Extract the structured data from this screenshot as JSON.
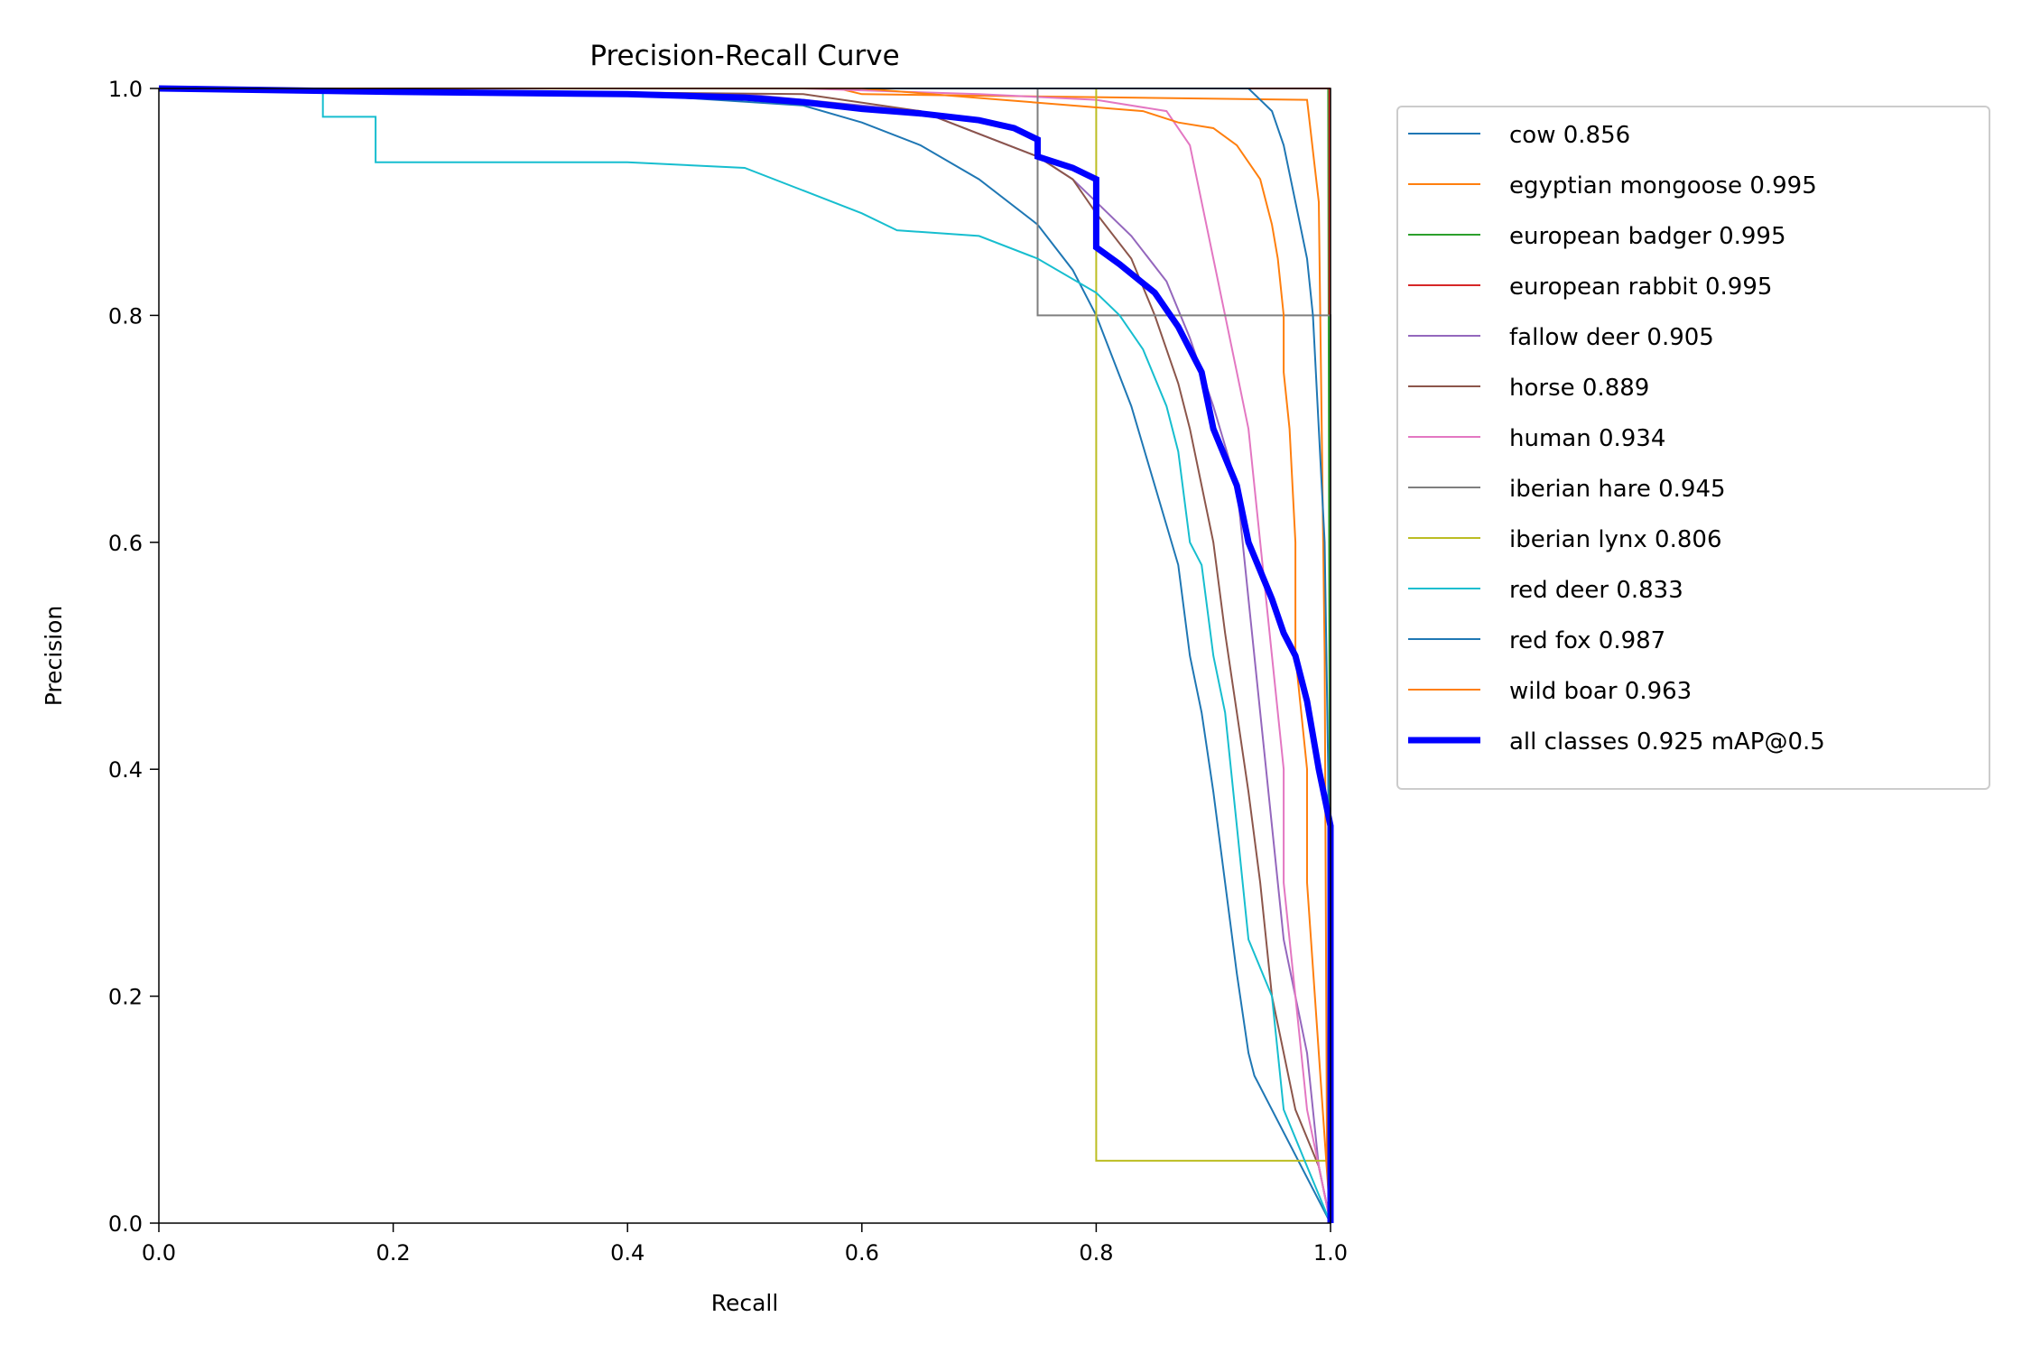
{
  "chart_data": {
    "type": "line",
    "title": "Precision-Recall Curve",
    "xlabel": "Recall",
    "ylabel": "Precision",
    "xlim": [
      0,
      1
    ],
    "ylim": [
      0,
      1
    ],
    "x_ticks": [
      "0.0",
      "0.2",
      "0.4",
      "0.6",
      "0.8",
      "1.0"
    ],
    "y_ticks": [
      "0.0",
      "0.2",
      "0.4",
      "0.6",
      "0.8",
      "1.0"
    ],
    "grid": false,
    "legend_position": "outside-right",
    "series": [
      {
        "name": "cow 0.856",
        "color": "#1f77b4",
        "width": 1,
        "points": [
          [
            0,
            1
          ],
          [
            0.4,
            0.995
          ],
          [
            0.55,
            0.985
          ],
          [
            0.6,
            0.97
          ],
          [
            0.65,
            0.95
          ],
          [
            0.7,
            0.92
          ],
          [
            0.75,
            0.88
          ],
          [
            0.78,
            0.84
          ],
          [
            0.8,
            0.8
          ],
          [
            0.83,
            0.72
          ],
          [
            0.85,
            0.65
          ],
          [
            0.87,
            0.58
          ],
          [
            0.88,
            0.5
          ],
          [
            0.89,
            0.45
          ],
          [
            0.9,
            0.38
          ],
          [
            0.91,
            0.3
          ],
          [
            0.92,
            0.22
          ],
          [
            0.93,
            0.15
          ],
          [
            0.935,
            0.13
          ],
          [
            1,
            0
          ]
        ]
      },
      {
        "name": "egyptian mongoose 0.995",
        "color": "#ff7f0e",
        "width": 1,
        "points": [
          [
            0,
            1
          ],
          [
            0.58,
            1
          ],
          [
            0.6,
            0.995
          ],
          [
            0.98,
            0.99
          ],
          [
            0.99,
            0.9
          ],
          [
            0.995,
            0.5
          ],
          [
            0.997,
            0.05
          ],
          [
            1,
            0
          ]
        ]
      },
      {
        "name": "european badger 0.995",
        "color": "#2ca02c",
        "width": 1,
        "points": [
          [
            0,
            1
          ],
          [
            0.998,
            1
          ],
          [
            0.999,
            0.5
          ],
          [
            1,
            0
          ]
        ]
      },
      {
        "name": "european rabbit 0.995",
        "color": "#d62728",
        "width": 1,
        "points": [
          [
            0,
            1
          ],
          [
            0.999,
            1
          ],
          [
            0.999,
            0.8
          ],
          [
            1,
            0.8
          ],
          [
            1,
            0
          ]
        ]
      },
      {
        "name": "fallow deer 0.905",
        "color": "#9467bd",
        "width": 1,
        "points": [
          [
            0,
            1
          ],
          [
            0.5,
            0.995
          ],
          [
            0.65,
            0.98
          ],
          [
            0.7,
            0.96
          ],
          [
            0.75,
            0.94
          ],
          [
            0.78,
            0.92
          ],
          [
            0.8,
            0.9
          ],
          [
            0.83,
            0.87
          ],
          [
            0.86,
            0.83
          ],
          [
            0.88,
            0.78
          ],
          [
            0.9,
            0.72
          ],
          [
            0.92,
            0.65
          ],
          [
            0.93,
            0.55
          ],
          [
            0.94,
            0.45
          ],
          [
            0.95,
            0.35
          ],
          [
            0.96,
            0.25
          ],
          [
            0.98,
            0.15
          ],
          [
            0.99,
            0.05
          ],
          [
            1,
            0
          ]
        ]
      },
      {
        "name": "horse 0.889",
        "color": "#8c564b",
        "width": 1,
        "points": [
          [
            0,
            1
          ],
          [
            0.55,
            0.995
          ],
          [
            0.65,
            0.98
          ],
          [
            0.7,
            0.96
          ],
          [
            0.75,
            0.94
          ],
          [
            0.78,
            0.92
          ],
          [
            0.8,
            0.89
          ],
          [
            0.83,
            0.85
          ],
          [
            0.85,
            0.8
          ],
          [
            0.87,
            0.74
          ],
          [
            0.88,
            0.7
          ],
          [
            0.9,
            0.6
          ],
          [
            0.91,
            0.52
          ],
          [
            0.92,
            0.45
          ],
          [
            0.93,
            0.38
          ],
          [
            0.94,
            0.3
          ],
          [
            0.95,
            0.2
          ],
          [
            0.97,
            0.1
          ],
          [
            0.99,
            0.05
          ],
          [
            1,
            0
          ]
        ]
      },
      {
        "name": "human 0.934",
        "color": "#e377c2",
        "width": 1,
        "points": [
          [
            0,
            1
          ],
          [
            0.55,
            1
          ],
          [
            0.7,
            0.995
          ],
          [
            0.8,
            0.99
          ],
          [
            0.86,
            0.98
          ],
          [
            0.88,
            0.95
          ],
          [
            0.89,
            0.9
          ],
          [
            0.9,
            0.85
          ],
          [
            0.91,
            0.8
          ],
          [
            0.92,
            0.75
          ],
          [
            0.93,
            0.7
          ],
          [
            0.94,
            0.6
          ],
          [
            0.95,
            0.5
          ],
          [
            0.96,
            0.4
          ],
          [
            0.96,
            0.3
          ],
          [
            0.97,
            0.2
          ],
          [
            0.98,
            0.1
          ],
          [
            0.99,
            0.05
          ],
          [
            1,
            0
          ]
        ]
      },
      {
        "name": "iberian hare 0.945",
        "color": "#7f7f7f",
        "width": 1,
        "points": [
          [
            0,
            1
          ],
          [
            0.75,
            1
          ],
          [
            0.75,
            0.8
          ],
          [
            1,
            0.8
          ],
          [
            1,
            0
          ]
        ]
      },
      {
        "name": "iberian lynx 0.806",
        "color": "#bcbd22",
        "width": 1,
        "points": [
          [
            0,
            1
          ],
          [
            0.8,
            1
          ],
          [
            0.8,
            0.055
          ],
          [
            1,
            0.055
          ],
          [
            1,
            0
          ]
        ]
      },
      {
        "name": "red deer 0.833",
        "color": "#17becf",
        "width": 1,
        "points": [
          [
            0,
            1
          ],
          [
            0.14,
            1
          ],
          [
            0.14,
            0.975
          ],
          [
            0.185,
            0.975
          ],
          [
            0.185,
            0.935
          ],
          [
            0.4,
            0.935
          ],
          [
            0.5,
            0.93
          ],
          [
            0.55,
            0.91
          ],
          [
            0.6,
            0.89
          ],
          [
            0.63,
            0.875
          ],
          [
            0.7,
            0.87
          ],
          [
            0.75,
            0.85
          ],
          [
            0.8,
            0.82
          ],
          [
            0.82,
            0.8
          ],
          [
            0.84,
            0.77
          ],
          [
            0.86,
            0.72
          ],
          [
            0.87,
            0.68
          ],
          [
            0.88,
            0.6
          ],
          [
            0.89,
            0.58
          ],
          [
            0.9,
            0.5
          ],
          [
            0.91,
            0.45
          ],
          [
            0.92,
            0.35
          ],
          [
            0.93,
            0.25
          ],
          [
            0.95,
            0.2
          ],
          [
            0.96,
            0.1
          ],
          [
            0.98,
            0.05
          ],
          [
            1,
            0
          ]
        ]
      },
      {
        "name": "red fox 0.987",
        "color": "#1f77b4",
        "width": 1,
        "points": [
          [
            0,
            1
          ],
          [
            0.8,
            1
          ],
          [
            0.93,
            1
          ],
          [
            0.95,
            0.98
          ],
          [
            0.96,
            0.95
          ],
          [
            0.97,
            0.9
          ],
          [
            0.98,
            0.85
          ],
          [
            0.985,
            0.8
          ],
          [
            0.99,
            0.7
          ],
          [
            0.995,
            0.6
          ],
          [
            0.998,
            0.4
          ],
          [
            1,
            0.05
          ],
          [
            1,
            0
          ]
        ]
      },
      {
        "name": "wild boar 0.963",
        "color": "#ff7f0e",
        "width": 1,
        "points": [
          [
            0,
            1
          ],
          [
            0.6,
            1
          ],
          [
            0.72,
            0.99
          ],
          [
            0.84,
            0.98
          ],
          [
            0.87,
            0.97
          ],
          [
            0.9,
            0.965
          ],
          [
            0.92,
            0.95
          ],
          [
            0.94,
            0.92
          ],
          [
            0.95,
            0.88
          ],
          [
            0.955,
            0.85
          ],
          [
            0.96,
            0.8
          ],
          [
            0.96,
            0.75
          ],
          [
            0.965,
            0.7
          ],
          [
            0.97,
            0.6
          ],
          [
            0.97,
            0.5
          ],
          [
            0.98,
            0.4
          ],
          [
            0.98,
            0.3
          ],
          [
            0.99,
            0.15
          ],
          [
            1,
            0
          ]
        ]
      },
      {
        "name": "all classes 0.925 mAP@0.5",
        "color": "#0000ff",
        "width": 6,
        "points": [
          [
            0,
            1
          ],
          [
            0.2,
            0.997
          ],
          [
            0.4,
            0.995
          ],
          [
            0.5,
            0.992
          ],
          [
            0.55,
            0.988
          ],
          [
            0.6,
            0.982
          ],
          [
            0.65,
            0.978
          ],
          [
            0.7,
            0.972
          ],
          [
            0.73,
            0.965
          ],
          [
            0.75,
            0.955
          ],
          [
            0.75,
            0.94
          ],
          [
            0.78,
            0.93
          ],
          [
            0.8,
            0.92
          ],
          [
            0.8,
            0.86
          ],
          [
            0.82,
            0.845
          ],
          [
            0.85,
            0.82
          ],
          [
            0.87,
            0.79
          ],
          [
            0.89,
            0.75
          ],
          [
            0.9,
            0.7
          ],
          [
            0.92,
            0.65
          ],
          [
            0.93,
            0.6
          ],
          [
            0.95,
            0.55
          ],
          [
            0.96,
            0.52
          ],
          [
            0.97,
            0.5
          ],
          [
            0.98,
            0.46
          ],
          [
            0.99,
            0.4
          ],
          [
            1,
            0.35
          ],
          [
            1,
            0
          ]
        ]
      }
    ]
  }
}
